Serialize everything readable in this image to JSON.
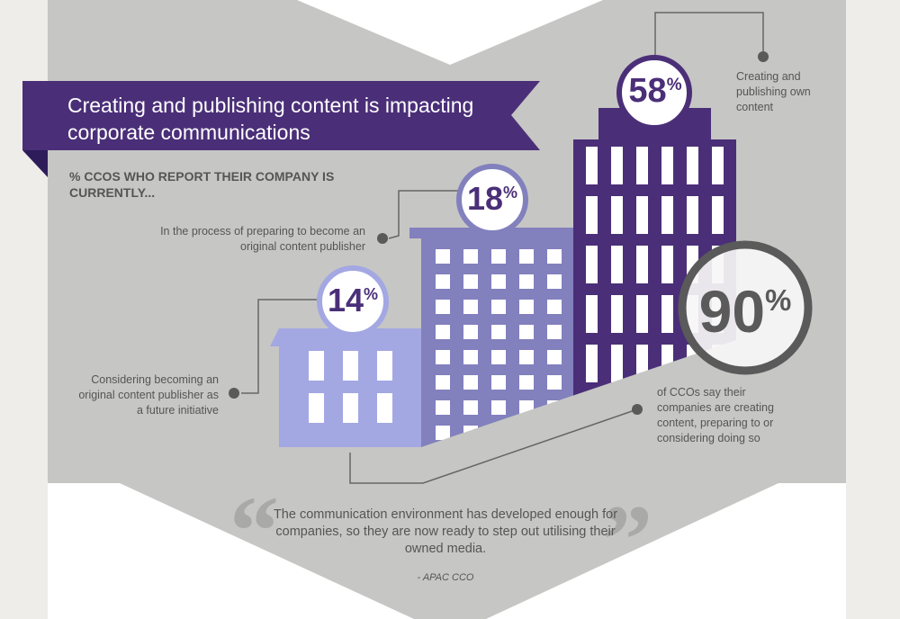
{
  "header": {
    "title": "Creating and publishing content is impacting corporate communications",
    "subtitle": "% CCOS WHO REPORT THEIR COMPANY IS CURRENTLY..."
  },
  "stats": [
    {
      "value": "58",
      "unit": "%",
      "label": "Creating and publishing own content",
      "color": "#4a2f78"
    },
    {
      "value": "18",
      "unit": "%",
      "label": "In the process of preparing to become an original content publisher",
      "color": "#8280bd"
    },
    {
      "value": "14",
      "unit": "%",
      "label": "Considering becoming an original content publisher as a future initiative",
      "color": "#a3a7e2"
    }
  ],
  "total": {
    "value": "90",
    "unit": "%",
    "label": "of CCOs say their companies are creating content, preparing to or considering doing so",
    "color": "#5a5a5a"
  },
  "quote": {
    "open_mark": "“",
    "close_mark": "”",
    "text": "The communication environment has developed enough for companies, so they are now ready to step out utilising their owned media.",
    "attribution": "- APAC CCO"
  },
  "colors": {
    "banner": "#4a2f78",
    "panel": "#c6c6c4",
    "page": "#efede9"
  }
}
